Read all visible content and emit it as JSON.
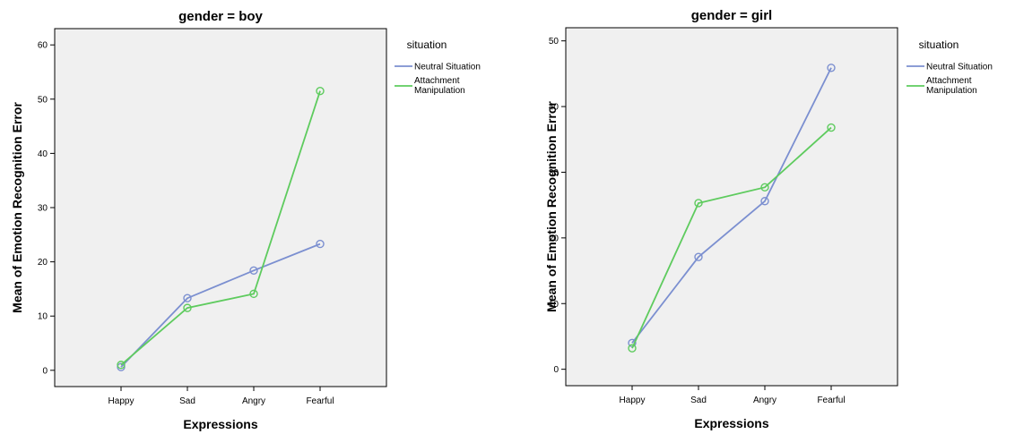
{
  "chart_data": [
    {
      "type": "line",
      "title": "gender = boy",
      "xlabel": "Expressions",
      "ylabel": "Mean of Emotion Recognition Error",
      "categories": [
        "Happy",
        "Sad",
        "Angry",
        "Fearful"
      ],
      "ylim": [
        -3,
        63
      ],
      "yticks": [
        0,
        10,
        20,
        30,
        40,
        50,
        60
      ],
      "grid": false,
      "legend": {
        "title": "situation",
        "placement": "right"
      },
      "series": [
        {
          "name": "Neutral Situation",
          "color": "#7b8fd0",
          "values": [
            0.6,
            13.3,
            18.4,
            23.3
          ]
        },
        {
          "name": "Attachment Manipulation",
          "color": "#5ecb5e",
          "values": [
            1.0,
            11.5,
            14.1,
            51.5
          ]
        }
      ]
    },
    {
      "type": "line",
      "title": "gender = girl",
      "xlabel": "Expressions",
      "ylabel": "Mean of Emotion Recognition Error",
      "categories": [
        "Happy",
        "Sad",
        "Angry",
        "Fearful"
      ],
      "ylim": [
        -2.5,
        52
      ],
      "yticks": [
        0,
        10,
        20,
        30,
        40,
        50
      ],
      "grid": false,
      "legend": {
        "title": "situation",
        "placement": "right"
      },
      "series": [
        {
          "name": "Neutral Situation",
          "color": "#7b8fd0",
          "values": [
            4.0,
            17.1,
            25.6,
            45.9
          ]
        },
        {
          "name": "Attachment Manipulation",
          "color": "#5ecb5e",
          "values": [
            3.2,
            25.3,
            27.7,
            36.8
          ]
        }
      ]
    }
  ]
}
